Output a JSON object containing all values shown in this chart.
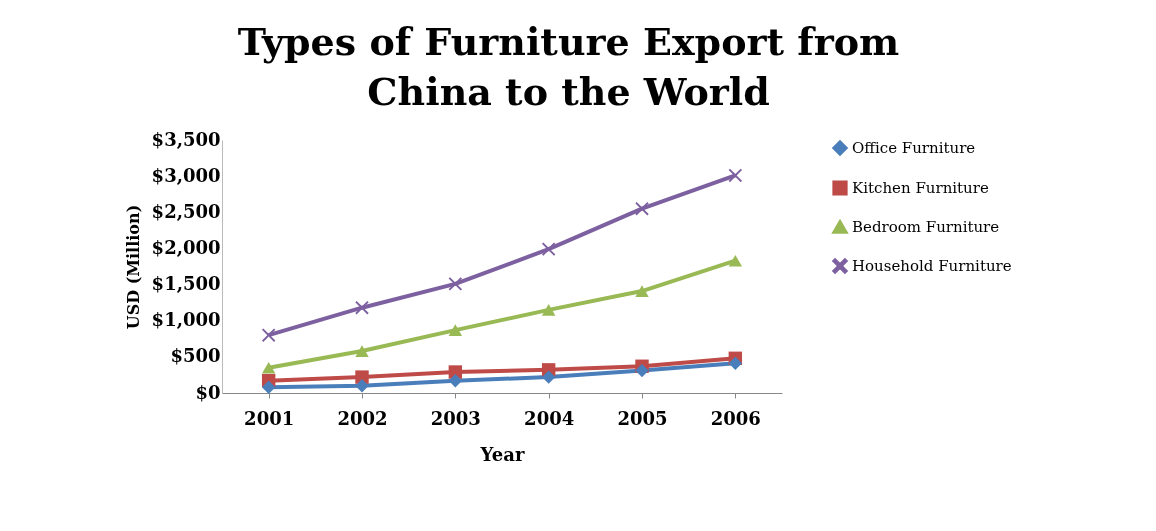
{
  "chart_data": {
    "type": "line",
    "title": "Types of Furniture Export from China to the World",
    "xlabel": "Year",
    "ylabel": "USD (Million)",
    "categories": [
      "2001",
      "2002",
      "2003",
      "2004",
      "2005",
      "2006"
    ],
    "series": [
      {
        "name": "Office Furniture",
        "color": "#4a7ebb",
        "marker": "diamond",
        "values": [
          80,
          100,
          170,
          220,
          310,
          410
        ]
      },
      {
        "name": "Kitchen Furniture",
        "color": "#be4b48",
        "marker": "square",
        "values": [
          170,
          220,
          290,
          320,
          370,
          480
        ]
      },
      {
        "name": "Bedroom Furniture",
        "color": "#98b954",
        "marker": "triangle",
        "values": [
          350,
          580,
          870,
          1150,
          1410,
          1830
        ]
      },
      {
        "name": "Household Furniture",
        "color": "#7d60a0",
        "marker": "cross",
        "values": [
          800,
          1180,
          1510,
          1990,
          2550,
          3010
        ]
      }
    ],
    "ylim": [
      0,
      3500
    ],
    "yticks": [
      {
        "value": 0,
        "label": "$0"
      },
      {
        "value": 500,
        "label": "$500"
      },
      {
        "value": 1000,
        "label": "$1,000"
      },
      {
        "value": 1500,
        "label": "$1,500"
      },
      {
        "value": 2000,
        "label": "$2,000"
      },
      {
        "value": 2500,
        "label": "$2,500"
      },
      {
        "value": 3000,
        "label": "$3,000"
      },
      {
        "value": 3500,
        "label": "$3,500"
      }
    ],
    "grid": false,
    "legend": "right",
    "line_style": "solid"
  }
}
